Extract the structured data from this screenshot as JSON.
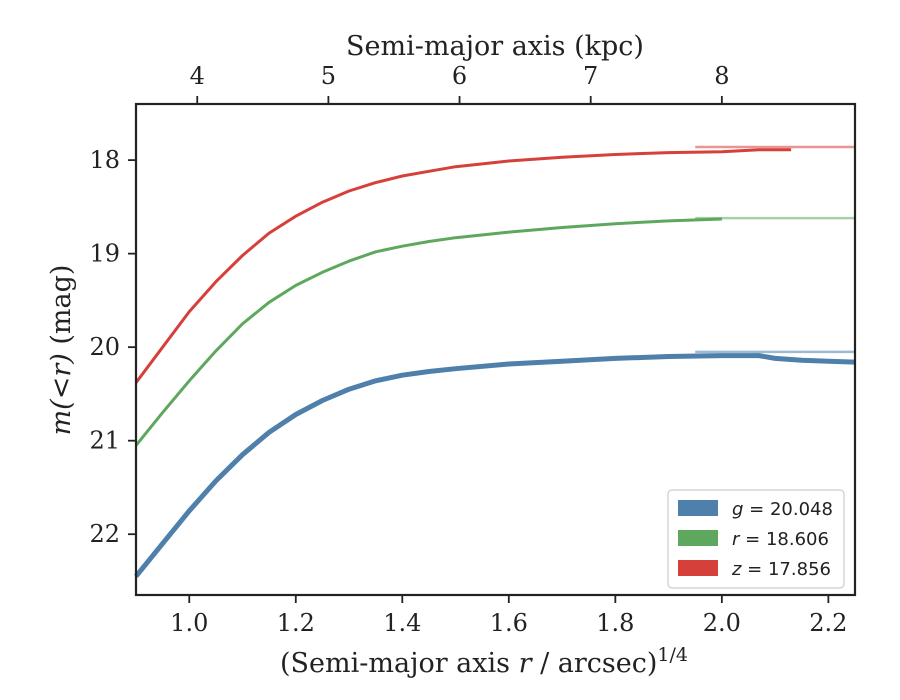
{
  "chart_data": {
    "type": "line",
    "xlabel_pre": "(Semi-major axis ",
    "xlabel_var": "r",
    "xlabel_post": " / arcsec)",
    "xlabel_sup": "1/4",
    "top_xlabel": "Semi-major axis (kpc)",
    "ylabel_var_pre": "m",
    "ylabel_var_mid": "(<r)",
    "ylabel_post": " (mag)",
    "xlim": [
      0.9,
      2.25
    ],
    "ylim": [
      22.65,
      17.4
    ],
    "y_inverted": true,
    "x_ticks": [
      1.0,
      1.2,
      1.4,
      1.6,
      1.8,
      2.0,
      2.2
    ],
    "x_tick_labels": [
      "1.0",
      "1.2",
      "1.4",
      "1.6",
      "1.8",
      "2.0",
      "2.2"
    ],
    "y_ticks": [
      18,
      19,
      20,
      21,
      22
    ],
    "y_tick_labels": [
      "18",
      "19",
      "20",
      "21",
      "22"
    ],
    "top_x_ticks_kpc": [
      4,
      5,
      6,
      7,
      8
    ],
    "top_x_tick_labels": [
      "4",
      "5",
      "6",
      "7",
      "8"
    ],
    "top_kpc_to_x_ref": {
      "kpc": [
        4,
        8
      ],
      "x": [
        1.015,
        2.0
      ]
    },
    "grid": false,
    "legend_position": "lower-right",
    "series": [
      {
        "name": "g = 20.048",
        "legend_var": "g",
        "legend_value": "20.048",
        "color": "#4f7fab",
        "x": [
          0.9,
          0.95,
          1.0,
          1.05,
          1.1,
          1.15,
          1.2,
          1.25,
          1.3,
          1.35,
          1.4,
          1.45,
          1.5,
          1.6,
          1.7,
          1.8,
          1.9,
          2.0,
          2.07,
          2.1,
          2.15,
          2.2,
          2.25
        ],
        "y": [
          22.45,
          22.1,
          21.75,
          21.43,
          21.15,
          20.91,
          20.72,
          20.57,
          20.45,
          20.36,
          20.3,
          20.26,
          20.23,
          20.18,
          20.15,
          20.12,
          20.1,
          20.09,
          20.09,
          20.12,
          20.14,
          20.15,
          20.16
        ],
        "asymptote": 20.05,
        "band_width": 5
      },
      {
        "name": "r = 18.606",
        "legend_var": "r",
        "legend_value": "18.606",
        "color": "#5ea85e",
        "x": [
          0.9,
          0.95,
          1.0,
          1.05,
          1.1,
          1.15,
          1.2,
          1.25,
          1.3,
          1.35,
          1.4,
          1.45,
          1.5,
          1.6,
          1.7,
          1.8,
          1.9,
          2.0
        ],
        "y": [
          21.05,
          20.7,
          20.36,
          20.04,
          19.75,
          19.52,
          19.34,
          19.2,
          19.08,
          18.98,
          18.92,
          18.87,
          18.83,
          18.77,
          18.72,
          18.68,
          18.65,
          18.63
        ],
        "asymptote": 18.62,
        "band_width": 3
      },
      {
        "name": "z = 17.856",
        "legend_var": "z",
        "legend_value": "17.856",
        "color": "#d6403a",
        "x": [
          0.9,
          0.95,
          1.0,
          1.05,
          1.1,
          1.15,
          1.2,
          1.25,
          1.3,
          1.35,
          1.4,
          1.45,
          1.5,
          1.6,
          1.7,
          1.8,
          1.9,
          2.0,
          2.07,
          2.13
        ],
        "y": [
          20.38,
          20.0,
          19.62,
          19.3,
          19.02,
          18.78,
          18.6,
          18.45,
          18.33,
          18.24,
          18.17,
          18.12,
          18.07,
          18.01,
          17.97,
          17.94,
          17.92,
          17.91,
          17.89,
          17.89
        ],
        "asymptote": 17.86,
        "band_width": 3
      }
    ]
  }
}
